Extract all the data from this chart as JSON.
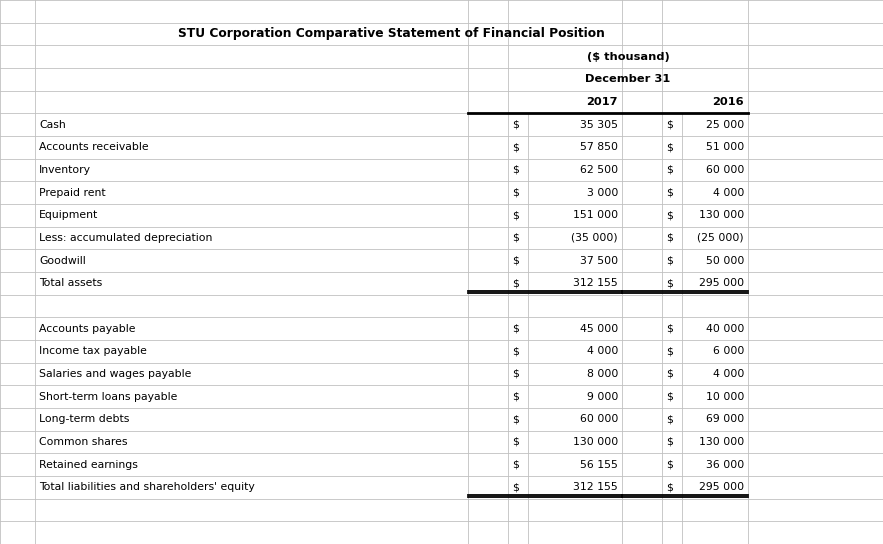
{
  "title": "STU Corporation Comparative Statement of Financial Position",
  "subtitle1": "($ thousand)",
  "subtitle2": "December 31",
  "col_headers": [
    "2017",
    "2016"
  ],
  "rows": [
    {
      "label": "Cash",
      "val2017": "35 305",
      "val2016": "25 000",
      "bold": false,
      "double_under": false,
      "blank": false
    },
    {
      "label": "Accounts receivable",
      "val2017": "57 850",
      "val2016": "51 000",
      "bold": false,
      "double_under": false,
      "blank": false
    },
    {
      "label": "Inventory",
      "val2017": "62 500",
      "val2016": "60 000",
      "bold": false,
      "double_under": false,
      "blank": false
    },
    {
      "label": "Prepaid rent",
      "val2017": "3 000",
      "val2016": "4 000",
      "bold": false,
      "double_under": false,
      "blank": false
    },
    {
      "label": "Equipment",
      "val2017": "151 000",
      "val2016": "130 000",
      "bold": false,
      "double_under": false,
      "blank": false
    },
    {
      "label": "Less: accumulated depreciation",
      "val2017": "(35 000)",
      "val2016": "(25 000)",
      "bold": false,
      "double_under": false,
      "blank": false
    },
    {
      "label": "Goodwill",
      "val2017": "37 500",
      "val2016": "50 000",
      "bold": false,
      "double_under": false,
      "blank": false
    },
    {
      "label": "Total assets",
      "val2017": "312 155",
      "val2016": "295 000",
      "bold": false,
      "double_under": true,
      "blank": false
    },
    {
      "label": "",
      "val2017": "",
      "val2016": "",
      "bold": false,
      "double_under": false,
      "blank": true
    },
    {
      "label": "Accounts payable",
      "val2017": "45 000",
      "val2016": "40 000",
      "bold": false,
      "double_under": false,
      "blank": false
    },
    {
      "label": "Income tax payable",
      "val2017": "4 000",
      "val2016": "6 000",
      "bold": false,
      "double_under": false,
      "blank": false
    },
    {
      "label": "Salaries and wages payable",
      "val2017": "8 000",
      "val2016": "4 000",
      "bold": false,
      "double_under": false,
      "blank": false
    },
    {
      "label": "Short-term loans payable",
      "val2017": "9 000",
      "val2016": "10 000",
      "bold": false,
      "double_under": false,
      "blank": false
    },
    {
      "label": "Long-term debts",
      "val2017": "60 000",
      "val2016": "69 000",
      "bold": false,
      "double_under": false,
      "blank": false
    },
    {
      "label": "Common shares",
      "val2017": "130 000",
      "val2016": "130 000",
      "bold": false,
      "double_under": false,
      "blank": false
    },
    {
      "label": "Retained earnings",
      "val2017": "56 155",
      "val2016": "36 000",
      "bold": false,
      "double_under": false,
      "blank": false
    },
    {
      "label": "Total liabilities and shareholders' equity",
      "val2017": "312 155",
      "val2016": "295 000",
      "bold": false,
      "double_under": true,
      "blank": false
    }
  ],
  "bg_color": "#ffffff",
  "text_color": "#000000",
  "grid_color": "#c0c0c0",
  "title_fontsize": 8.8,
  "body_fontsize": 7.8,
  "header_fontsize": 8.2
}
